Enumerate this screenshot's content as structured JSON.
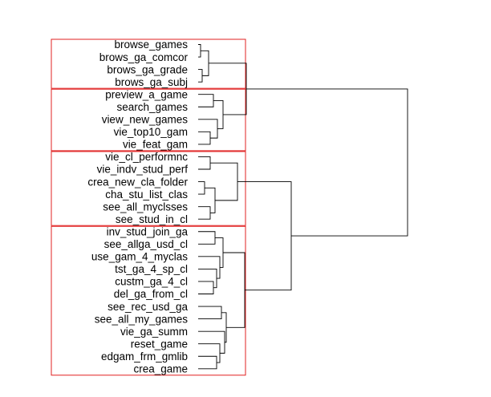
{
  "dendrogram": {
    "leaves": [
      "browse_games",
      "brows_ga_comcor",
      "brows_ga_grade",
      "brows_ga_subj",
      "preview_a_game",
      "search_games",
      "view_new_games",
      "vie_top10_gam",
      "vie_feat_gam",
      "vie_cl_performnc",
      "vie_indv_stud_perf",
      "crea_new_cla_folder",
      "cha_stu_list_clas",
      "see_all_myclsses",
      "see_stud_in_cl",
      "inv_stud_join_ga",
      "see_allga_usd_cl",
      "use_gam_4_myclas",
      "tst_ga_4_sp_cl",
      "custm_ga_4_cl",
      "del_ga_from_cl",
      "see_rec_usd_ga",
      "see_all_my_games",
      "vie_ga_summ",
      "reset_game",
      "edgam_frm_gmlib",
      "crea_game"
    ],
    "clusters": [
      {
        "name": "cluster-1",
        "first": 0,
        "last": 3
      },
      {
        "name": "cluster-2",
        "first": 4,
        "last": 8
      },
      {
        "name": "cluster-3",
        "first": 9,
        "last": 14
      },
      {
        "name": "cluster-4",
        "first": 15,
        "last": 26
      }
    ],
    "colors": {
      "cluster_box": "#e02020",
      "branch": "#000000"
    }
  }
}
